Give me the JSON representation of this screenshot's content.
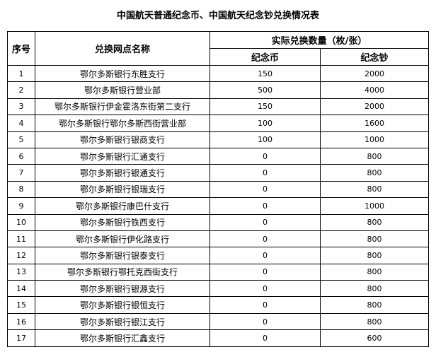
{
  "title": "中国航天普通纪念币、中国航天纪念钞兑换情况表",
  "headers": {
    "seq": "序号",
    "name": "兑换网点名称",
    "qty": "实际兑换数量（枚/张）",
    "coin": "纪念币",
    "note": "纪念钞"
  },
  "rows": [
    {
      "seq": "1",
      "name": "鄂尔多斯银行东胜支行",
      "coin": "150",
      "note": "2000"
    },
    {
      "seq": "2",
      "name": "鄂尔多斯银行营业部",
      "coin": "500",
      "note": "4000"
    },
    {
      "seq": "3",
      "name": "鄂尔多斯银行伊金霍洛东街第二支行",
      "coin": "150",
      "note": "2000"
    },
    {
      "seq": "4",
      "name": "鄂尔多斯银行鄂尔多斯西街营业部",
      "coin": "100",
      "note": "1600"
    },
    {
      "seq": "5",
      "name": "鄂尔多斯银行银商支行",
      "coin": "100",
      "note": "1000"
    },
    {
      "seq": "6",
      "name": "鄂尔多斯银行汇通支行",
      "coin": "0",
      "note": "800"
    },
    {
      "seq": "7",
      "name": "鄂尔多斯银行银通支行",
      "coin": "0",
      "note": "800"
    },
    {
      "seq": "8",
      "name": "鄂尔多斯银行银瑞支行",
      "coin": "0",
      "note": "800"
    },
    {
      "seq": "9",
      "name": "鄂尔多斯银行康巴什支行",
      "coin": "0",
      "note": "1000"
    },
    {
      "seq": "10",
      "name": "鄂尔多斯银行铁西支行",
      "coin": "0",
      "note": "800"
    },
    {
      "seq": "11",
      "name": "鄂尔多斯银行伊化路支行",
      "coin": "0",
      "note": "800"
    },
    {
      "seq": "12",
      "name": "鄂尔多斯银行银泰支行",
      "coin": "0",
      "note": "800"
    },
    {
      "seq": "13",
      "name": "鄂尔多斯银行鄂托克西街支行",
      "coin": "0",
      "note": "800"
    },
    {
      "seq": "14",
      "name": "鄂尔多斯银行银源支行",
      "coin": "0",
      "note": "800"
    },
    {
      "seq": "15",
      "name": "鄂尔多斯银行银恒支行",
      "coin": "0",
      "note": "800"
    },
    {
      "seq": "16",
      "name": "鄂尔多斯银行银江支行",
      "coin": "0",
      "note": "800"
    },
    {
      "seq": "17",
      "name": "鄂尔多斯银行汇鑫支行",
      "coin": "0",
      "note": "600"
    }
  ]
}
